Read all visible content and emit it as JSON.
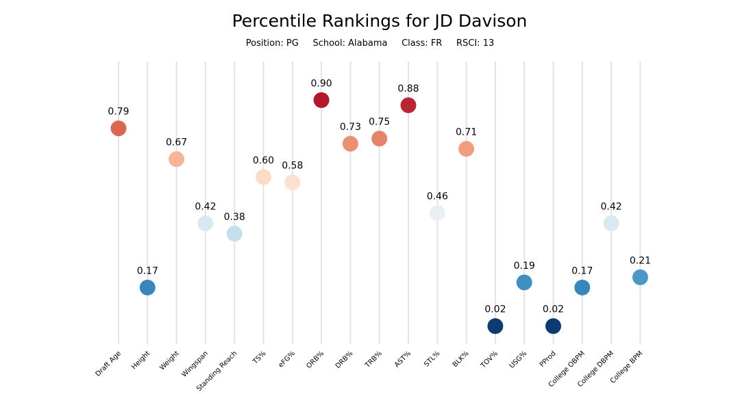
{
  "chart_data": {
    "type": "scatter",
    "title": "Percentile Rankings for JD Davison",
    "subtitle": "Position: PG     School: Alabama     Class: FR     RSCI: 13",
    "ylim": [
      0,
      1
    ],
    "grid": "vertical",
    "categories": [
      "Draft Age",
      "Height",
      "Weight",
      "Wingspan",
      "Standing Reach",
      "TS%",
      "eFG%",
      "ORB%",
      "DRB%",
      "TRB%",
      "AST%",
      "STL%",
      "BLK%",
      "TOV%",
      "USG%",
      "PProd",
      "College OBPM",
      "College DBPM",
      "College BPM"
    ],
    "values": [
      0.79,
      0.17,
      0.67,
      0.42,
      0.38,
      0.6,
      0.58,
      0.9,
      0.73,
      0.75,
      0.88,
      0.46,
      0.71,
      0.02,
      0.19,
      0.02,
      0.17,
      0.42,
      0.21
    ],
    "value_labels": [
      "0.79",
      "0.17",
      "0.67",
      "0.42",
      "0.38",
      "0.60",
      "0.58",
      "0.90",
      "0.73",
      "0.75",
      "0.88",
      "0.46",
      "0.71",
      "0.02",
      "0.19",
      "0.02",
      "0.17",
      "0.42",
      "0.21"
    ],
    "colormap": "RdBu_r"
  }
}
